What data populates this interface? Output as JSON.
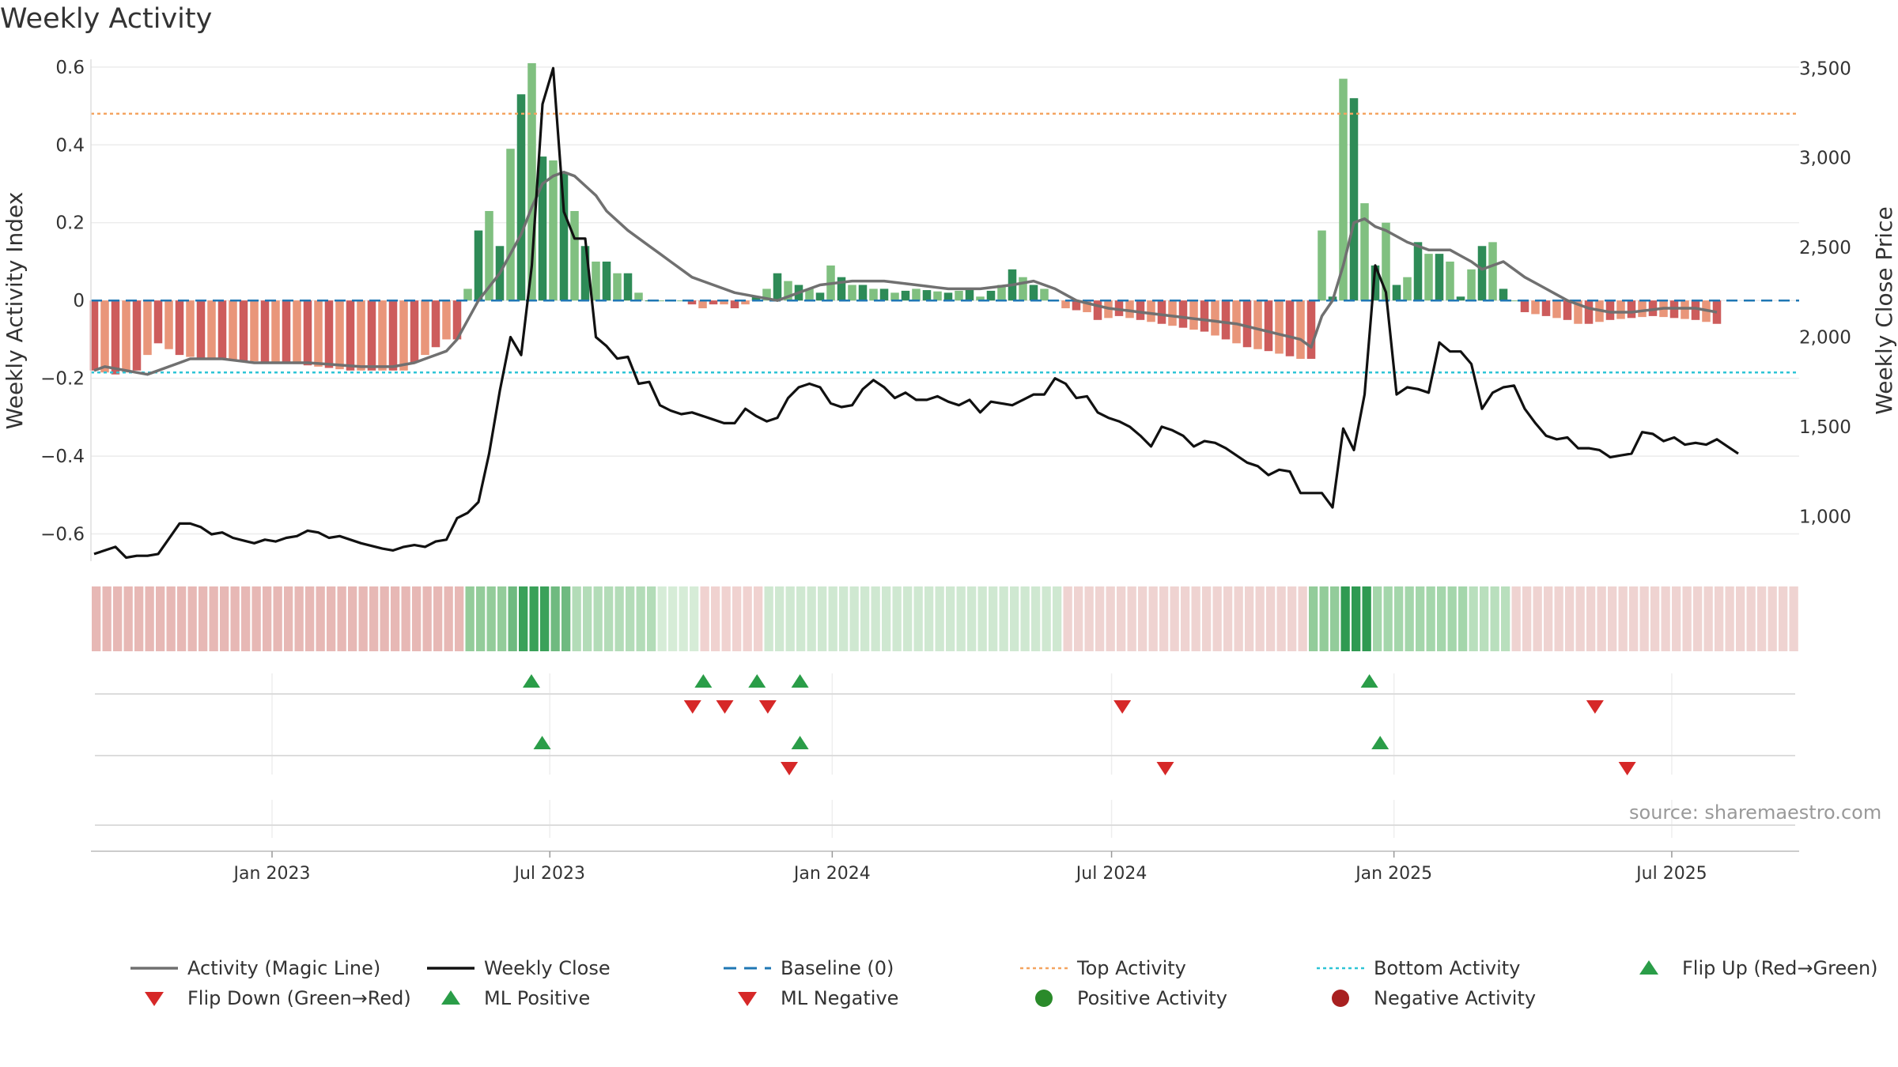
{
  "title": "Weekly Activity",
  "source": "source: sharemaestro.com",
  "colors": {
    "strong_green": "#2e8b57",
    "light_green": "#80c080",
    "strong_red": "#cd5c5c",
    "light_red": "#e9967a",
    "magic_line": "#707070",
    "weekly_close": "#111111",
    "baseline": "#1f77b4",
    "top_activity": "#f4a460",
    "bottom_activity": "#2ec4d6",
    "flip_up": "#2a9d48",
    "flip_down": "#d62828",
    "positive_activity": "#2a8a2a",
    "negative_activity": "#a82020"
  },
  "chart_data": {
    "type": "bar+line",
    "title": "Weekly Activity",
    "ylabel_left": "Weekly Activity Index",
    "ylabel_right": "Weekly Close Price",
    "x_range": [
      "2022-09-05",
      "2025-09-22"
    ],
    "x_tick_labels": [
      {
        "date": "2023-01-01",
        "label": "Jan 2023"
      },
      {
        "date": "2023-07-01",
        "label": "Jul 2023"
      },
      {
        "date": "2024-01-01",
        "label": "Jan 2024"
      },
      {
        "date": "2024-07-01",
        "label": "Jul 2024"
      },
      {
        "date": "2025-01-01",
        "label": "Jan 2025"
      },
      {
        "date": "2025-07-01",
        "label": "Jul 2025"
      }
    ],
    "left_axis": {
      "ylim": [
        -0.67,
        0.62
      ],
      "ticks": [
        0.6,
        0.4,
        0.2,
        0,
        -0.2,
        -0.4,
        -0.6
      ],
      "tick_labels": [
        "0.6",
        "0.4",
        "0.2",
        "0",
        "−0.2",
        "−0.4",
        "−0.6"
      ]
    },
    "right_axis": {
      "ylim": [
        750,
        3550
      ],
      "ticks": [
        3500,
        3000,
        2500,
        2000,
        1500,
        1000
      ],
      "tick_labels": [
        "3,500",
        "3,000",
        "2,500",
        "2,000",
        "1,500",
        "1,000"
      ]
    },
    "reference_lines": {
      "baseline": 0,
      "top_activity": 0.48,
      "bottom_activity": -0.185
    },
    "activity_keyframes": [
      [
        0,
        -0.18
      ],
      [
        2,
        -0.19
      ],
      [
        4,
        -0.18
      ],
      [
        5,
        -0.14
      ],
      [
        6,
        -0.11
      ],
      [
        8,
        -0.14
      ],
      [
        10,
        -0.15
      ],
      [
        18,
        -0.16
      ],
      [
        24,
        -0.18
      ],
      [
        29,
        -0.18
      ],
      [
        31,
        -0.14
      ],
      [
        33,
        -0.1
      ],
      [
        34,
        -0.1
      ],
      [
        35,
        0.03
      ],
      [
        36,
        0.18
      ],
      [
        37,
        0.23
      ],
      [
        38,
        0.14
      ],
      [
        39,
        0.39
      ],
      [
        40,
        0.53
      ],
      [
        41,
        0.61
      ],
      [
        42,
        0.37
      ],
      [
        43,
        0.36
      ],
      [
        44,
        0.33
      ],
      [
        45,
        0.23
      ],
      [
        46,
        0.14
      ],
      [
        47,
        0.1
      ],
      [
        48,
        0.1
      ],
      [
        49,
        0.07
      ],
      [
        50,
        0.07
      ],
      [
        51,
        0.02
      ],
      [
        52,
        0.0
      ],
      [
        55,
        0.0
      ],
      [
        56,
        -0.01
      ],
      [
        57,
        -0.02
      ],
      [
        58,
        -0.01
      ],
      [
        59,
        -0.01
      ],
      [
        60,
        -0.02
      ],
      [
        61,
        -0.01
      ],
      [
        63,
        0.03
      ],
      [
        64,
        0.07
      ],
      [
        65,
        0.05
      ],
      [
        66,
        0.04
      ],
      [
        67,
        0.03
      ],
      [
        68,
        0.02
      ],
      [
        69,
        0.09
      ],
      [
        70,
        0.06
      ],
      [
        71,
        0.04
      ],
      [
        72,
        0.04
      ],
      [
        73,
        0.03
      ],
      [
        74,
        0.03
      ],
      [
        75,
        0.02
      ],
      [
        77,
        0.03
      ],
      [
        80,
        0.02
      ],
      [
        82,
        0.03
      ],
      [
        83,
        0.01
      ],
      [
        85,
        0.04
      ],
      [
        86,
        0.08
      ],
      [
        87,
        0.06
      ],
      [
        88,
        0.04
      ],
      [
        89,
        0.03
      ],
      [
        90,
        0.0
      ],
      [
        91,
        -0.02
      ],
      [
        93,
        -0.03
      ],
      [
        94,
        -0.05
      ],
      [
        96,
        -0.04
      ],
      [
        100,
        -0.06
      ],
      [
        104,
        -0.08
      ],
      [
        106,
        -0.1
      ],
      [
        108,
        -0.12
      ],
      [
        110,
        -0.13
      ],
      [
        113,
        -0.15
      ],
      [
        114,
        -0.15
      ],
      [
        115,
        0.18
      ],
      [
        116,
        0.01
      ],
      [
        117,
        0.57
      ],
      [
        118,
        0.52
      ],
      [
        119,
        0.25
      ],
      [
        120,
        0.09
      ],
      [
        121,
        0.2
      ],
      [
        122,
        0.04
      ],
      [
        123,
        0.06
      ],
      [
        124,
        0.15
      ],
      [
        125,
        0.12
      ],
      [
        126,
        0.12
      ],
      [
        127,
        0.1
      ],
      [
        128,
        0.01
      ],
      [
        129,
        0.08
      ],
      [
        130,
        0.14
      ],
      [
        131,
        0.15
      ],
      [
        132,
        0.03
      ],
      [
        133,
        0.0
      ],
      [
        134,
        -0.03
      ],
      [
        136,
        -0.04
      ],
      [
        138,
        -0.05
      ],
      [
        139,
        -0.06
      ],
      [
        140,
        -0.06
      ],
      [
        142,
        -0.05
      ],
      [
        146,
        -0.04
      ],
      [
        150,
        -0.05
      ],
      [
        152,
        -0.06
      ]
    ],
    "magic_line_keyframes": [
      [
        0,
        -0.18
      ],
      [
        1,
        -0.17
      ],
      [
        3,
        -0.18
      ],
      [
        5,
        -0.19
      ],
      [
        7,
        -0.17
      ],
      [
        9,
        -0.15
      ],
      [
        12,
        -0.15
      ],
      [
        15,
        -0.16
      ],
      [
        20,
        -0.16
      ],
      [
        25,
        -0.17
      ],
      [
        28,
        -0.17
      ],
      [
        30,
        -0.16
      ],
      [
        31,
        -0.15
      ],
      [
        33,
        -0.13
      ],
      [
        34,
        -0.1
      ],
      [
        36,
        0.0
      ],
      [
        38,
        0.07
      ],
      [
        39,
        0.12
      ],
      [
        40,
        0.17
      ],
      [
        41,
        0.24
      ],
      [
        42,
        0.3
      ],
      [
        43,
        0.32
      ],
      [
        44,
        0.33
      ],
      [
        45,
        0.32
      ],
      [
        47,
        0.27
      ],
      [
        48,
        0.23
      ],
      [
        50,
        0.18
      ],
      [
        52,
        0.14
      ],
      [
        54,
        0.1
      ],
      [
        56,
        0.06
      ],
      [
        58,
        0.04
      ],
      [
        60,
        0.02
      ],
      [
        62,
        0.01
      ],
      [
        64,
        0.0
      ],
      [
        66,
        0.02
      ],
      [
        68,
        0.04
      ],
      [
        71,
        0.05
      ],
      [
        74,
        0.05
      ],
      [
        77,
        0.04
      ],
      [
        80,
        0.03
      ],
      [
        83,
        0.03
      ],
      [
        86,
        0.04
      ],
      [
        88,
        0.05
      ],
      [
        90,
        0.03
      ],
      [
        92,
        0.0
      ],
      [
        95,
        -0.02
      ],
      [
        98,
        -0.03
      ],
      [
        101,
        -0.04
      ],
      [
        104,
        -0.05
      ],
      [
        107,
        -0.06
      ],
      [
        110,
        -0.08
      ],
      [
        113,
        -0.1
      ],
      [
        114,
        -0.12
      ],
      [
        115,
        -0.04
      ],
      [
        116,
        0.0
      ],
      [
        117,
        0.09
      ],
      [
        118,
        0.2
      ],
      [
        119,
        0.21
      ],
      [
        120,
        0.19
      ],
      [
        121,
        0.18
      ],
      [
        123,
        0.15
      ],
      [
        125,
        0.13
      ],
      [
        127,
        0.13
      ],
      [
        129,
        0.1
      ],
      [
        130,
        0.08
      ],
      [
        131,
        0.09
      ],
      [
        132,
        0.1
      ],
      [
        134,
        0.06
      ],
      [
        136,
        0.03
      ],
      [
        138,
        0.0
      ],
      [
        140,
        -0.02
      ],
      [
        142,
        -0.03
      ],
      [
        144,
        -0.03
      ],
      [
        147,
        -0.02
      ],
      [
        150,
        -0.02
      ],
      [
        152,
        -0.03
      ]
    ],
    "price_keyframes": [
      [
        0,
        790
      ],
      [
        2,
        830
      ],
      [
        3,
        770
      ],
      [
        4,
        780
      ],
      [
        5,
        780
      ],
      [
        6,
        790
      ],
      [
        8,
        960
      ],
      [
        9,
        960
      ],
      [
        10,
        940
      ],
      [
        11,
        900
      ],
      [
        12,
        910
      ],
      [
        13,
        880
      ],
      [
        15,
        850
      ],
      [
        16,
        870
      ],
      [
        17,
        860
      ],
      [
        18,
        880
      ],
      [
        19,
        890
      ],
      [
        20,
        920
      ],
      [
        21,
        910
      ],
      [
        22,
        880
      ],
      [
        23,
        890
      ],
      [
        24,
        870
      ],
      [
        25,
        850
      ],
      [
        27,
        820
      ],
      [
        28,
        810
      ],
      [
        29,
        830
      ],
      [
        30,
        840
      ],
      [
        31,
        830
      ],
      [
        32,
        860
      ],
      [
        33,
        870
      ],
      [
        34,
        990
      ],
      [
        35,
        1020
      ],
      [
        36,
        1080
      ],
      [
        37,
        1350
      ],
      [
        38,
        1700
      ],
      [
        39,
        2000
      ],
      [
        40,
        1900
      ],
      [
        41,
        2400
      ],
      [
        42,
        3300
      ],
      [
        43,
        3500
      ],
      [
        44,
        2700
      ],
      [
        45,
        2550
      ],
      [
        46,
        2550
      ],
      [
        47,
        2000
      ],
      [
        48,
        1950
      ],
      [
        49,
        1880
      ],
      [
        50,
        1890
      ],
      [
        51,
        1740
      ],
      [
        52,
        1750
      ],
      [
        53,
        1620
      ],
      [
        54,
        1590
      ],
      [
        55,
        1570
      ],
      [
        56,
        1580
      ],
      [
        57,
        1560
      ],
      [
        58,
        1540
      ],
      [
        59,
        1520
      ],
      [
        60,
        1520
      ],
      [
        61,
        1600
      ],
      [
        62,
        1560
      ],
      [
        63,
        1530
      ],
      [
        64,
        1550
      ],
      [
        65,
        1660
      ],
      [
        66,
        1720
      ],
      [
        67,
        1740
      ],
      [
        68,
        1720
      ],
      [
        69,
        1630
      ],
      [
        70,
        1610
      ],
      [
        71,
        1620
      ],
      [
        72,
        1710
      ],
      [
        73,
        1760
      ],
      [
        74,
        1720
      ],
      [
        75,
        1660
      ],
      [
        76,
        1690
      ],
      [
        77,
        1650
      ],
      [
        78,
        1650
      ],
      [
        79,
        1670
      ],
      [
        80,
        1640
      ],
      [
        81,
        1620
      ],
      [
        82,
        1650
      ],
      [
        83,
        1580
      ],
      [
        84,
        1640
      ],
      [
        85,
        1630
      ],
      [
        86,
        1620
      ],
      [
        87,
        1650
      ],
      [
        88,
        1680
      ],
      [
        89,
        1680
      ],
      [
        90,
        1770
      ],
      [
        91,
        1740
      ],
      [
        92,
        1660
      ],
      [
        93,
        1670
      ],
      [
        94,
        1580
      ],
      [
        95,
        1550
      ],
      [
        96,
        1530
      ],
      [
        97,
        1500
      ],
      [
        98,
        1450
      ],
      [
        99,
        1390
      ],
      [
        100,
        1500
      ],
      [
        101,
        1480
      ],
      [
        102,
        1450
      ],
      [
        103,
        1390
      ],
      [
        104,
        1420
      ],
      [
        105,
        1410
      ],
      [
        106,
        1380
      ],
      [
        107,
        1340
      ],
      [
        108,
        1300
      ],
      [
        109,
        1280
      ],
      [
        110,
        1230
      ],
      [
        111,
        1260
      ],
      [
        112,
        1250
      ],
      [
        113,
        1130
      ],
      [
        114,
        1130
      ],
      [
        115,
        1130
      ],
      [
        116,
        1050
      ],
      [
        117,
        1490
      ],
      [
        118,
        1370
      ],
      [
        119,
        1680
      ],
      [
        120,
        2400
      ],
      [
        121,
        2250
      ],
      [
        122,
        1680
      ],
      [
        123,
        1720
      ],
      [
        124,
        1710
      ],
      [
        125,
        1690
      ],
      [
        126,
        1970
      ],
      [
        127,
        1920
      ],
      [
        128,
        1920
      ],
      [
        129,
        1850
      ],
      [
        130,
        1600
      ],
      [
        131,
        1690
      ],
      [
        132,
        1720
      ],
      [
        133,
        1730
      ],
      [
        134,
        1600
      ],
      [
        135,
        1520
      ],
      [
        136,
        1450
      ],
      [
        137,
        1430
      ],
      [
        138,
        1440
      ],
      [
        139,
        1380
      ],
      [
        140,
        1380
      ],
      [
        141,
        1370
      ],
      [
        142,
        1330
      ],
      [
        143,
        1340
      ],
      [
        144,
        1350
      ],
      [
        145,
        1470
      ],
      [
        146,
        1460
      ],
      [
        147,
        1420
      ],
      [
        148,
        1440
      ],
      [
        149,
        1400
      ],
      [
        150,
        1410
      ],
      [
        151,
        1400
      ],
      [
        152,
        1430
      ],
      [
        153,
        1390
      ],
      [
        154,
        1350
      ]
    ],
    "heat_strip": "Weekly activity heat strip: red shades for negative weeks, green shades for positive weeks (darker = stronger)",
    "marker_rows": [
      {
        "row": 1,
        "flips_up": [
          "2023-06-19",
          "2023-10-09",
          "2023-11-13",
          "2023-12-11",
          "2024-12-16"
        ],
        "flips_down": [
          "2023-10-02",
          "2023-10-23",
          "2023-11-20",
          "2024-07-08",
          "2025-05-12"
        ]
      },
      {
        "row": 2,
        "ml_positive": [
          "2023-06-26",
          "2023-12-11",
          "2024-12-23"
        ],
        "ml_negative": [
          "2023-12-04",
          "2024-08-05",
          "2025-06-02"
        ]
      },
      {
        "row": 3,
        "positive_activity": [],
        "negative_activity": []
      }
    ],
    "legend": [
      {
        "label": "Activity (Magic Line)",
        "style": "line-grey"
      },
      {
        "label": "Weekly Close",
        "style": "line-black"
      },
      {
        "label": "Baseline (0)",
        "style": "dashed-blue"
      },
      {
        "label": "Top Activity",
        "style": "dotted-orange"
      },
      {
        "label": "Bottom Activity",
        "style": "dotted-cyan"
      },
      {
        "label": "Flip Up (Red→Green)",
        "style": "triangle-up-green"
      },
      {
        "label": "Flip Down (Green→Red)",
        "style": "triangle-down-red"
      },
      {
        "label": "ML Positive",
        "style": "triangle-up-green"
      },
      {
        "label": "ML Negative",
        "style": "triangle-down-red"
      },
      {
        "label": "Positive Activity",
        "style": "dot-green"
      },
      {
        "label": "Negative Activity",
        "style": "dot-darkred"
      }
    ]
  }
}
